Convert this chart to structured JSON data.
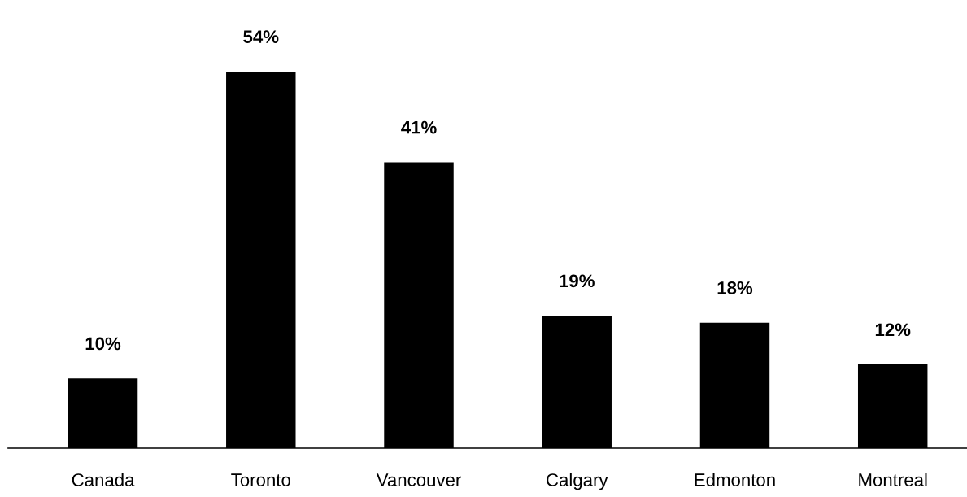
{
  "chart_data": {
    "type": "bar",
    "categories": [
      "Canada",
      "Toronto",
      "Vancouver",
      "Calgary",
      "Edmonton",
      "Montreal"
    ],
    "values": [
      10,
      54,
      41,
      19,
      18,
      12
    ],
    "value_labels": [
      "10%",
      "54%",
      "41%",
      "19%",
      "18%",
      "12%"
    ],
    "color": "#000000",
    "grid": false
  }
}
